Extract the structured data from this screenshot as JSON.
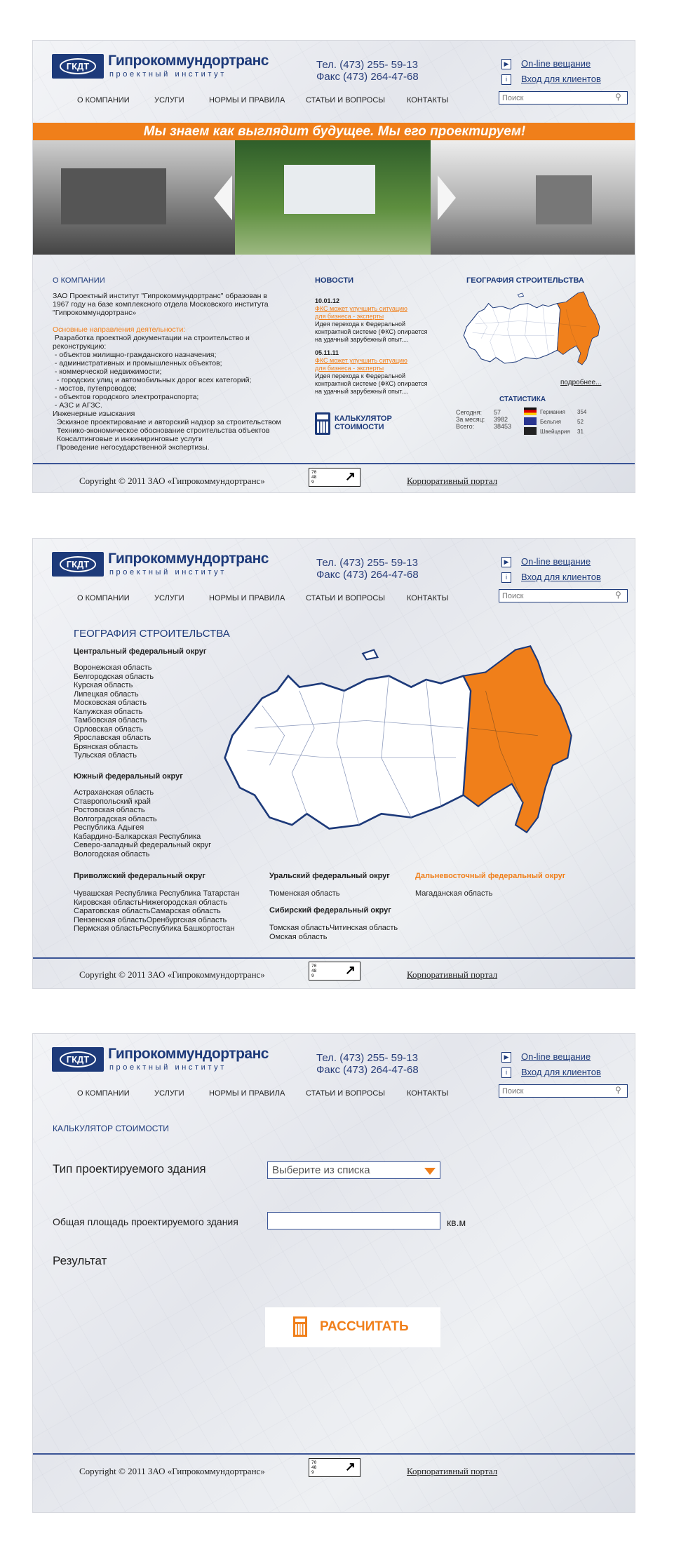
{
  "header": {
    "logo_abbr": "ГКДТ",
    "brand": "Гипрокоммундортранс",
    "brand_sub": "проектный институт",
    "phone": "Тел. (473) 255- 59-13",
    "fax": "Факс (473) 264-47-68",
    "online_label": "On-line вещание",
    "clients_label": "Вход для клиентов",
    "search_placeholder": "Поиск",
    "nav": [
      "О КОМПАНИИ",
      "УСЛУГИ",
      "НОРМЫ И ПРАВИЛА",
      "СТАТЬИ И ВОПРОСЫ",
      "КОНТАКТЫ"
    ]
  },
  "footer": {
    "copyright": "Copyright © 2011 ЗАО «Гипрокоммундортранс»",
    "counter": "70 48 9",
    "portal": "Корпоративный портал"
  },
  "home": {
    "banner": "Мы знаем как выглядит будущее. Мы его проектируем!",
    "about_title": "О КОМПАНИИ",
    "about_text": [
      "ЗАО Проектный институт \"Гипрокоммундортранс\" образован в",
      "1967 году на базе комплексного отдела Московского института",
      "\"Гипрокоммундортранс»"
    ],
    "directions_title": "Основные направления деятельности:",
    "directions": [
      " Разработка проектной документации на строительство и",
      "реконструкцию:",
      " - объектов жилищно-гражданского назначения;",
      " - административных и промышленных объектов;",
      " - коммерческой недвижимости;",
      "  - городских улиц и автомобильных дорог всех категорий;",
      " - мостов, путепроводов;",
      " - объектов городского электротранспорта;",
      " - АЗС и АГЗС.",
      "Инженерные изыскания",
      "  Эскизное проектирование и авторский надзор за строительством",
      "  Технико-экономическое обоснование строительства объектов",
      "  Консалтинговые и инжиниринговые услуги",
      "  Проведение негосударственной экспертизы."
    ],
    "news_title": "НОВОСТИ",
    "news": [
      {
        "date": "10.01.12",
        "link1": "ФКС может улучшить ситуацию",
        "link2": "для бизнеса - эксперты",
        "t1": "Идея перехода к Федеральной",
        "t2": "контрактной системе (ФКС) опирается",
        "t3": "на удачный зарубежный опыт...."
      },
      {
        "date": "05.11.11",
        "link1": "ФКС может улучшить ситуацию",
        "link2": "для бизнеса - эксперты",
        "t1": "Идея перехода к Федеральной",
        "t2": "контрактной системе (ФКС) опирается",
        "t3": "на удачный зарубежный опыт...."
      }
    ],
    "calc1": "КАЛЬКУЛЯТОР",
    "calc2": "СТОИМОСТИ",
    "geo_title": "ГЕОГРАФИЯ СТРОИТЕЛЬСТВА",
    "more": "подробнее...",
    "stats_title": "СТАТИСТИКА",
    "stats": [
      {
        "label": "Сегодня:",
        "value": "57"
      },
      {
        "label": "За месяц:",
        "value": "3982"
      },
      {
        "label": "Всего:",
        "value": "38453"
      }
    ],
    "countries": [
      {
        "name": "Германия",
        "value": "354",
        "flag": "germany"
      },
      {
        "name": "Бельгия",
        "value": "52",
        "flag": "eu"
      },
      {
        "name": "Швейцария",
        "value": "31",
        "flag": "dark"
      }
    ]
  },
  "geo": {
    "title": "ГЕОГРАФИЯ СТРОИТЕЛЬСТВА",
    "central": {
      "title": "Центральный федеральный округ",
      "items": [
        "Воронежская область",
        "Белгородская область",
        "Курская область",
        "Липецкая область",
        "Московская область",
        "Калужская область",
        "Тамбовская область",
        "Орловская область",
        "Ярославская область",
        "Брянская область",
        "Тульская область"
      ]
    },
    "south": {
      "title": "Южный федеральный округ",
      "items": [
        "Астраханская область",
        "Ставропольский край",
        "Ростовская область",
        "Волгоградская область",
        "Республика Адыгея",
        "Кабардино-Балкарская Республика",
        "Северо-западный федеральный округ",
        "Вологодская область"
      ]
    },
    "volga": {
      "title": "Приволжский федеральный округ",
      "items": [
        "Чувашская Республика Республика Татарстан",
        "Кировская областьНижегородская область",
        "Саратовская областьСамарская область",
        "Пензенская областьОренбургская область",
        "Пермская областьРеспублика Башкортостан"
      ]
    },
    "ural": {
      "title": "Уральский федеральный округ",
      "items": [
        "Тюменская область"
      ]
    },
    "siberia": {
      "title": "Сибирский федеральный округ",
      "items": [
        "Томская областьЧитинская область",
        "Омская область"
      ]
    },
    "fareast": {
      "title": "Дальневосточный федеральный округ",
      "items": [
        "Магаданская область"
      ]
    },
    "highlight_color": "#f07f1a"
  },
  "calc": {
    "title": "КАЛЬКУЛЯТОР СТОИМОСТИ",
    "type_label": "Тип проектируемого здания",
    "select_value": "Выберите из списка",
    "area_label": "Общая площадь проектируемого здания",
    "area_value": "",
    "unit": "кв.м",
    "result_label": "Результат",
    "button": "РАССЧИТАТЬ"
  },
  "colors": {
    "brand": "#1d3a7a",
    "accent": "#f07f1a"
  }
}
